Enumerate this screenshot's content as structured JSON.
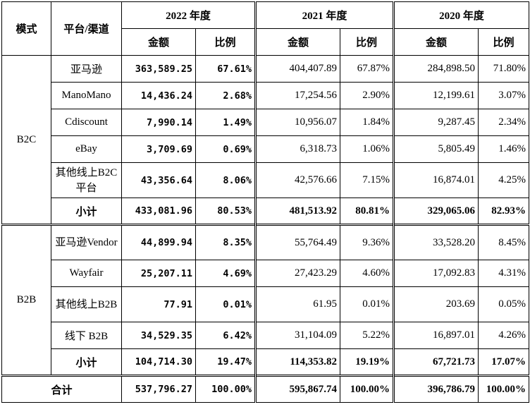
{
  "header": {
    "mode": "模式",
    "channel": "平台/渠道",
    "years": [
      "2022 年度",
      "2021 年度",
      "2020 年度"
    ],
    "amount": "金额",
    "ratio": "比例"
  },
  "b2c": {
    "label": "B2C",
    "rows": [
      {
        "channel": "亚马逊",
        "v": [
          "363,589.25",
          "67.61%",
          "404,407.89",
          "67.87%",
          "284,898.50",
          "71.80%"
        ]
      },
      {
        "channel": "ManoMano",
        "v": [
          "14,436.24",
          "2.68%",
          "17,254.56",
          "2.90%",
          "12,199.61",
          "3.07%"
        ]
      },
      {
        "channel": "Cdiscount",
        "v": [
          "7,990.14",
          "1.49%",
          "10,956.07",
          "1.84%",
          "9,287.45",
          "2.34%"
        ]
      },
      {
        "channel": "eBay",
        "v": [
          "3,709.69",
          "0.69%",
          "6,318.73",
          "1.06%",
          "5,805.49",
          "1.46%"
        ]
      },
      {
        "channel": "其他线上B2C 平台",
        "v": [
          "43,356.64",
          "8.06%",
          "42,576.66",
          "7.15%",
          "16,874.01",
          "4.25%"
        ]
      }
    ],
    "subtotal": {
      "label": "小计",
      "v": [
        "433,081.96",
        "80.53%",
        "481,513.92",
        "80.81%",
        "329,065.06",
        "82.93%"
      ]
    }
  },
  "b2b": {
    "label": "B2B",
    "rows": [
      {
        "channel": "亚马逊Vendor",
        "v": [
          "44,899.94",
          "8.35%",
          "55,764.49",
          "9.36%",
          "33,528.20",
          "8.45%"
        ]
      },
      {
        "channel": "Wayfair",
        "v": [
          "25,207.11",
          "4.69%",
          "27,423.29",
          "4.60%",
          "17,092.83",
          "4.31%"
        ]
      },
      {
        "channel": "其他线上B2B",
        "v": [
          "77.91",
          "0.01%",
          "61.95",
          "0.01%",
          "203.69",
          "0.05%"
        ]
      },
      {
        "channel": "线下 B2B",
        "v": [
          "34,529.35",
          "6.42%",
          "31,104.09",
          "5.22%",
          "16,897.01",
          "4.26%"
        ]
      }
    ],
    "subtotal": {
      "label": "小计",
      "v": [
        "104,714.30",
        "19.47%",
        "114,353.82",
        "19.19%",
        "67,721.73",
        "17.07%"
      ]
    }
  },
  "total": {
    "label": "合计",
    "v": [
      "537,796.27",
      "100.00%",
      "595,867.74",
      "100.00%",
      "396,786.79",
      "100.00%"
    ]
  }
}
